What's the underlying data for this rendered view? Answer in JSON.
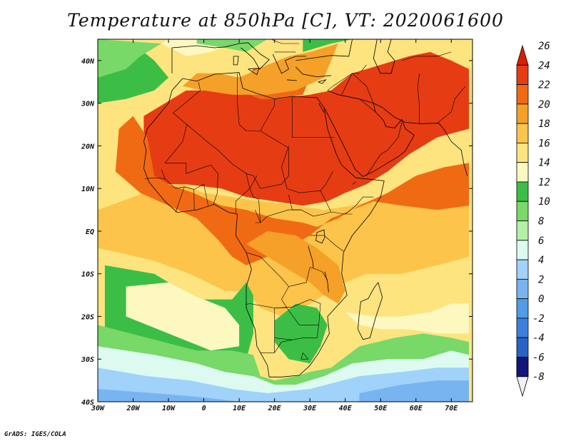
{
  "title": "Temperature at 850hPa [C], VT: 2020061600",
  "credit": "GrADS: IGES/COLA",
  "colors": {
    "land_border": "#000000",
    "frame": "#000000"
  },
  "map": {
    "projection": "lat-lon",
    "lon_range": [
      -30,
      76
    ],
    "lat_range": [
      -40,
      45
    ],
    "x_ticks": [
      {
        "lon": -30,
        "label": "30W"
      },
      {
        "lon": -20,
        "label": "20W"
      },
      {
        "lon": -10,
        "label": "10W"
      },
      {
        "lon": 0,
        "label": "0"
      },
      {
        "lon": 10,
        "label": "10E"
      },
      {
        "lon": 20,
        "label": "20E"
      },
      {
        "lon": 30,
        "label": "30E"
      },
      {
        "lon": 40,
        "label": "40E"
      },
      {
        "lon": 50,
        "label": "50E"
      },
      {
        "lon": 60,
        "label": "60E"
      },
      {
        "lon": 70,
        "label": "70E"
      }
    ],
    "y_ticks": [
      {
        "lat": 40,
        "label": "40N"
      },
      {
        "lat": 30,
        "label": "30N"
      },
      {
        "lat": 20,
        "label": "20N"
      },
      {
        "lat": 10,
        "label": "10N"
      },
      {
        "lat": 0,
        "label": "EQ"
      },
      {
        "lat": -10,
        "label": "10S"
      },
      {
        "lat": -20,
        "label": "20S"
      },
      {
        "lat": -30,
        "label": "30S"
      },
      {
        "lat": -40,
        "label": "40S"
      }
    ],
    "field": "temperature at 850hPa",
    "field_regions": [
      {
        "level": 24,
        "poly": [
          [
            -17,
            14
          ],
          [
            -17,
            27
          ],
          [
            -5,
            33
          ],
          [
            10,
            33
          ],
          [
            20,
            31
          ],
          [
            30,
            32
          ],
          [
            36,
            33
          ],
          [
            42,
            37
          ],
          [
            50,
            39
          ],
          [
            58,
            41
          ],
          [
            64,
            42
          ],
          [
            70,
            40
          ],
          [
            75,
            38
          ],
          [
            75,
            24
          ],
          [
            66,
            22
          ],
          [
            58,
            18
          ],
          [
            52,
            14
          ],
          [
            46,
            11
          ],
          [
            40,
            9
          ],
          [
            35,
            7
          ],
          [
            28,
            6
          ],
          [
            20,
            7
          ],
          [
            12,
            8
          ],
          [
            5,
            10
          ],
          [
            -5,
            11
          ],
          [
            -12,
            11
          ]
        ]
      },
      {
        "level": 22,
        "poly": [
          [
            -25,
            14
          ],
          [
            -24,
            24
          ],
          [
            -20,
            27
          ],
          [
            -16,
            22
          ],
          [
            -14,
            13
          ],
          [
            -10,
            11
          ],
          [
            -3,
            9
          ],
          [
            5,
            6
          ],
          [
            12,
            5
          ],
          [
            20,
            3
          ],
          [
            28,
            2
          ],
          [
            32,
            1
          ],
          [
            38,
            3
          ],
          [
            44,
            6
          ],
          [
            52,
            9
          ],
          [
            60,
            13
          ],
          [
            68,
            15
          ],
          [
            75,
            16
          ],
          [
            75,
            6
          ],
          [
            66,
            5
          ],
          [
            56,
            6
          ],
          [
            48,
            7
          ],
          [
            42,
            5
          ],
          [
            36,
            3
          ],
          [
            30,
            -1
          ],
          [
            24,
            -4
          ],
          [
            18,
            -6
          ],
          [
            12,
            -8
          ],
          [
            8,
            -6
          ],
          [
            4,
            -2
          ],
          [
            -2,
            3
          ],
          [
            -10,
            6
          ],
          [
            -18,
            9
          ]
        ]
      },
      {
        "level": 22,
        "poly": [
          [
            10,
            33
          ],
          [
            16,
            31
          ],
          [
            22,
            31
          ],
          [
            28,
            32
          ],
          [
            30,
            36
          ],
          [
            26,
            38
          ],
          [
            20,
            39
          ],
          [
            14,
            38
          ]
        ]
      },
      {
        "level": 20,
        "poly": [
          [
            12,
            -3
          ],
          [
            18,
            -6
          ],
          [
            24,
            -9
          ],
          [
            30,
            -12
          ],
          [
            34,
            -15
          ],
          [
            38,
            -17
          ],
          [
            40,
            -14
          ],
          [
            38,
            -8
          ],
          [
            32,
            -4
          ],
          [
            26,
            -1
          ],
          [
            18,
            0
          ]
        ]
      },
      {
        "level": 20,
        "poly": [
          [
            -6,
            34
          ],
          [
            -2,
            37
          ],
          [
            4,
            37
          ],
          [
            10,
            36
          ],
          [
            18,
            39
          ],
          [
            24,
            41
          ],
          [
            30,
            42
          ],
          [
            38,
            44
          ],
          [
            34,
            36
          ],
          [
            26,
            33
          ],
          [
            18,
            32
          ],
          [
            8,
            32
          ],
          [
            0,
            33
          ]
        ]
      },
      {
        "level": 12,
        "poly": [
          [
            -28,
            -8
          ],
          [
            -14,
            -10
          ],
          [
            -6,
            -14
          ],
          [
            0,
            -16
          ],
          [
            8,
            -16
          ],
          [
            12,
            -12
          ],
          [
            14,
            -15
          ],
          [
            14,
            -24
          ],
          [
            12,
            -30
          ],
          [
            0,
            -30
          ],
          [
            -14,
            -28
          ],
          [
            -28,
            -24
          ]
        ]
      },
      {
        "level": 14,
        "poly": [
          [
            -22,
            -13
          ],
          [
            -10,
            -12
          ],
          [
            -3,
            -15
          ],
          [
            6,
            -18
          ],
          [
            10,
            -22
          ],
          [
            10,
            -27
          ],
          [
            2,
            -28
          ],
          [
            -10,
            -24
          ],
          [
            -22,
            -20
          ]
        ]
      },
      {
        "level": 10,
        "poly": [
          [
            -30,
            -22
          ],
          [
            -16,
            -25
          ],
          [
            -2,
            -28
          ],
          [
            8,
            -28
          ],
          [
            14,
            -29
          ],
          [
            16,
            -34
          ],
          [
            20,
            -35
          ],
          [
            26,
            -34
          ],
          [
            30,
            -33
          ],
          [
            36,
            -32
          ],
          [
            44,
            -27
          ],
          [
            54,
            -25
          ],
          [
            62,
            -24
          ],
          [
            70,
            -25
          ],
          [
            75,
            -26
          ],
          [
            75,
            -40
          ],
          [
            -30,
            -40
          ]
        ]
      },
      {
        "level": 12,
        "poly": [
          [
            26,
            -17
          ],
          [
            32,
            -18
          ],
          [
            35,
            -22
          ],
          [
            33,
            -27
          ],
          [
            30,
            -31
          ],
          [
            24,
            -30
          ],
          [
            20,
            -26
          ],
          [
            20,
            -21
          ]
        ]
      },
      {
        "level": 14,
        "poly": [
          [
            40,
            -19
          ],
          [
            48,
            -20
          ],
          [
            56,
            -20
          ],
          [
            64,
            -19
          ],
          [
            70,
            -17
          ],
          [
            75,
            -17
          ],
          [
            75,
            -24
          ],
          [
            66,
            -24
          ],
          [
            58,
            -23
          ],
          [
            50,
            -23
          ],
          [
            44,
            -22
          ]
        ]
      },
      {
        "level": 6,
        "poly": [
          [
            -30,
            -27
          ],
          [
            -14,
            -29
          ],
          [
            -2,
            -31
          ],
          [
            6,
            -33
          ],
          [
            14,
            -34
          ],
          [
            20,
            -36
          ],
          [
            26,
            -36
          ],
          [
            34,
            -34
          ],
          [
            42,
            -31
          ],
          [
            52,
            -30
          ],
          [
            62,
            -30
          ],
          [
            70,
            -28
          ],
          [
            75,
            -29
          ],
          [
            75,
            -40
          ],
          [
            -30,
            -40
          ]
        ]
      },
      {
        "level": 4,
        "poly": [
          [
            -30,
            -32
          ],
          [
            -16,
            -34
          ],
          [
            -4,
            -35
          ],
          [
            8,
            -37
          ],
          [
            18,
            -38
          ],
          [
            30,
            -37
          ],
          [
            44,
            -34
          ],
          [
            56,
            -33
          ],
          [
            66,
            -32
          ],
          [
            75,
            -32
          ],
          [
            75,
            -40
          ],
          [
            -30,
            -40
          ]
        ]
      },
      {
        "level": 2,
        "poly": [
          [
            -30,
            -37
          ],
          [
            -14,
            -38
          ],
          [
            0,
            -39
          ],
          [
            10,
            -40
          ],
          [
            -30,
            -40
          ]
        ]
      },
      {
        "level": 2,
        "poly": [
          [
            44,
            -38
          ],
          [
            56,
            -36
          ],
          [
            66,
            -35
          ],
          [
            75,
            -35
          ],
          [
            75,
            -40
          ],
          [
            44,
            -40
          ]
        ]
      },
      {
        "level": 12,
        "poly": [
          [
            -30,
            30
          ],
          [
            -22,
            31
          ],
          [
            -14,
            33
          ],
          [
            -10,
            36
          ],
          [
            -14,
            40
          ],
          [
            -20,
            44
          ],
          [
            -30,
            45
          ]
        ]
      },
      {
        "level": 10,
        "poly": [
          [
            -30,
            36
          ],
          [
            -22,
            38
          ],
          [
            -18,
            41
          ],
          [
            -12,
            44
          ],
          [
            -30,
            45
          ]
        ]
      },
      {
        "level": 14,
        "poly": [
          [
            -12,
            44
          ],
          [
            -5,
            41
          ],
          [
            2,
            42
          ],
          [
            8,
            44
          ],
          [
            14,
            45
          ],
          [
            -10,
            45
          ]
        ]
      },
      {
        "level": 10,
        "poly": [
          [
            -2,
            44
          ],
          [
            6,
            43
          ],
          [
            12,
            42
          ],
          [
            18,
            45
          ],
          [
            -2,
            45
          ]
        ]
      },
      {
        "level": 12,
        "poly": [
          [
            28,
            42
          ],
          [
            36,
            44
          ],
          [
            42,
            45
          ],
          [
            28,
            45
          ]
        ]
      }
    ],
    "base_level": 16,
    "north_africa_gradient": {
      "level": 18,
      "poly": [
        [
          -30,
          5
        ],
        [
          -20,
          8
        ],
        [
          -14,
          10
        ],
        [
          -6,
          11
        ],
        [
          0,
          9
        ],
        [
          8,
          8
        ],
        [
          16,
          7
        ],
        [
          26,
          6
        ],
        [
          34,
          5
        ],
        [
          42,
          6
        ],
        [
          52,
          8
        ],
        [
          62,
          10
        ],
        [
          75,
          13
        ],
        [
          75,
          -6
        ],
        [
          66,
          -8
        ],
        [
          56,
          -10
        ],
        [
          46,
          -10
        ],
        [
          40,
          -12
        ],
        [
          34,
          -15
        ],
        [
          28,
          -18
        ],
        [
          22,
          -20
        ],
        [
          16,
          -18
        ],
        [
          12,
          -14
        ],
        [
          6,
          -14
        ],
        [
          -4,
          -10
        ],
        [
          -14,
          -7
        ],
        [
          -24,
          -5
        ],
        [
          -30,
          -4
        ]
      ]
    }
  },
  "colorbar": {
    "levels": [
      26,
      24,
      22,
      20,
      18,
      16,
      14,
      12,
      10,
      8,
      6,
      4,
      2,
      0,
      -2,
      -4,
      -6,
      -8
    ],
    "labels": [
      "26",
      "24",
      "22",
      "20",
      "18",
      "16",
      "14",
      "12",
      "10",
      "8",
      "6",
      "4",
      "2",
      "0",
      "-2",
      "-4",
      "-6",
      "-8"
    ],
    "colors": [
      "#dc1e00",
      "#e63c14",
      "#f06a14",
      "#f5a028",
      "#fcc44a",
      "#fde47f",
      "#fcf8c0",
      "#3cbe46",
      "#78d868",
      "#b4f0a6",
      "#dcfaf0",
      "#a0d2fa",
      "#78b4f0",
      "#509ce6",
      "#3c80dc",
      "#2864c8",
      "#1e3cb4",
      "#14147a"
    ]
  }
}
